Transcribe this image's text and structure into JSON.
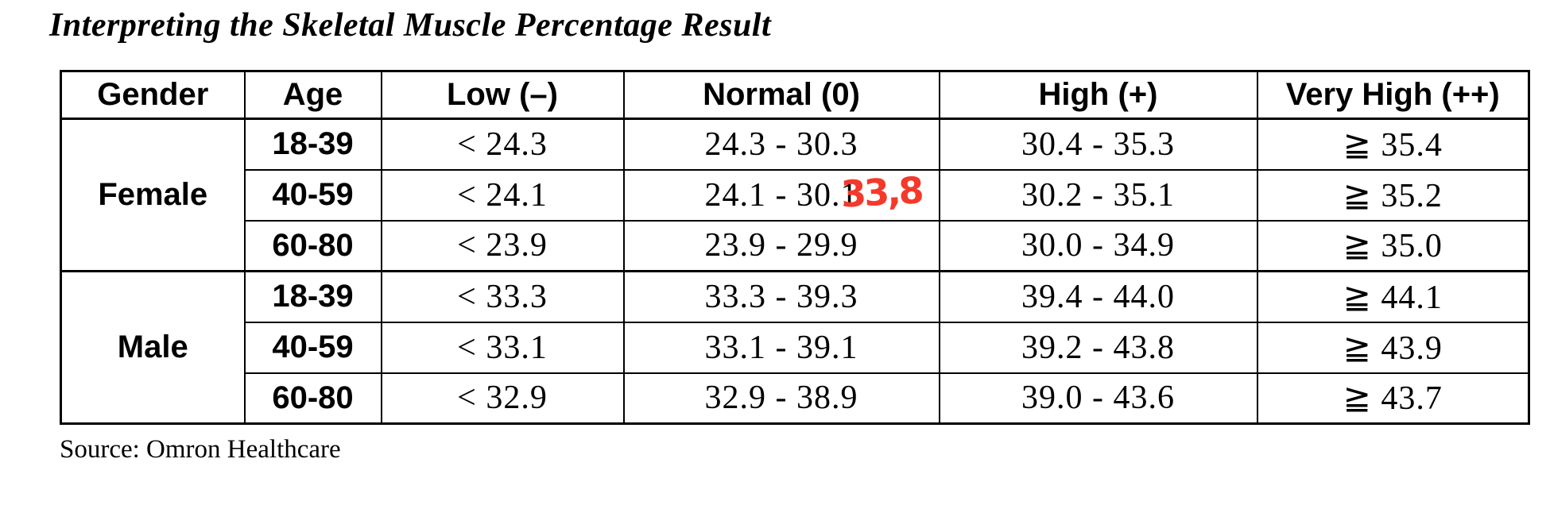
{
  "title": "Interpreting the Skeletal Muscle Percentage Result",
  "source": "Source: Omron Healthcare",
  "annotation": {
    "text": "33,8",
    "color": "#f4392b",
    "meaning": "handwritten red value next to Female 40-59 Normal range"
  },
  "colors": {
    "text": "#000000",
    "background": "#ffffff",
    "table_border": "#000000",
    "annotation_red": "#f4392b"
  },
  "table": {
    "headers": [
      "Gender",
      "Age",
      "Low (–)",
      "Normal (0)",
      "High (+)",
      "Very High (++)"
    ],
    "groups": [
      {
        "gender": "Female",
        "rows": [
          {
            "age": "18-39",
            "low": "< 24.3",
            "normal": "24.3 - 30.3",
            "high": "30.4 - 35.3",
            "very_high": "≧ 35.4"
          },
          {
            "age": "40-59",
            "low": "< 24.1",
            "normal": "24.1 - 30.1",
            "high": "30.2 - 35.1",
            "very_high": "≧ 35.2"
          },
          {
            "age": "60-80",
            "low": "< 23.9",
            "normal": "23.9 - 29.9",
            "high": "30.0 - 34.9",
            "very_high": "≧ 35.0"
          }
        ]
      },
      {
        "gender": "Male",
        "rows": [
          {
            "age": "18-39",
            "low": "< 33.3",
            "normal": "33.3 - 39.3",
            "high": "39.4 - 44.0",
            "very_high": "≧ 44.1"
          },
          {
            "age": "40-59",
            "low": "< 33.1",
            "normal": "33.1 - 39.1",
            "high": "39.2 - 43.8",
            "very_high": "≧ 43.9"
          },
          {
            "age": "60-80",
            "low": "< 32.9",
            "normal": "32.9 - 38.9",
            "high": "39.0 - 43.6",
            "very_high": "≧ 43.7"
          }
        ]
      }
    ]
  }
}
